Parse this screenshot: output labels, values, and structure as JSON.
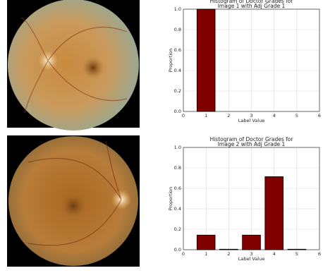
{
  "chart_data": [
    {
      "type": "bar",
      "title": [
        "Histogram of Doctor Grades for",
        "Image 1 with Adj Grade 1"
      ],
      "x": [
        1
      ],
      "values": [
        1.0
      ],
      "color": "#800000",
      "xlabel": "Label Value",
      "ylabel": "Proportion",
      "xlim": [
        0,
        6
      ],
      "xticks": [
        0,
        1,
        2,
        3,
        4,
        5,
        6
      ],
      "ylim": [
        0,
        1
      ],
      "yticks": [
        {
          "value": 0,
          "label": "0.0"
        },
        {
          "value": 0.2,
          "label": "0.2"
        },
        {
          "value": 0.4,
          "label": "0.4"
        },
        {
          "value": 0.6,
          "label": "0.6"
        },
        {
          "value": 0.8,
          "label": "0.8"
        },
        {
          "value": 1,
          "label": "1.0"
        }
      ],
      "grid": true
    },
    {
      "type": "bar",
      "title": [
        "Histogram of Doctor Grades for",
        "Image 2 with Adj Grade 1"
      ],
      "x": [
        1,
        2,
        3,
        4,
        5
      ],
      "values": [
        0.143,
        0.005,
        0.143,
        0.714,
        0.005
      ],
      "color": "#800000",
      "xlabel": "Label Value",
      "ylabel": "Proportion",
      "xlim": [
        0,
        6
      ],
      "xticks": [
        0,
        1,
        2,
        3,
        4,
        5,
        6
      ],
      "ylim": [
        0,
        1
      ],
      "yticks": [
        {
          "value": 0,
          "label": "0.0"
        },
        {
          "value": 0.2,
          "label": "0.2"
        },
        {
          "value": 0.4,
          "label": "0.4"
        },
        {
          "value": 0.6,
          "label": "0.6"
        },
        {
          "value": 0.8,
          "label": "0.8"
        },
        {
          "value": 1,
          "label": "1.0"
        }
      ],
      "grid": true
    }
  ]
}
